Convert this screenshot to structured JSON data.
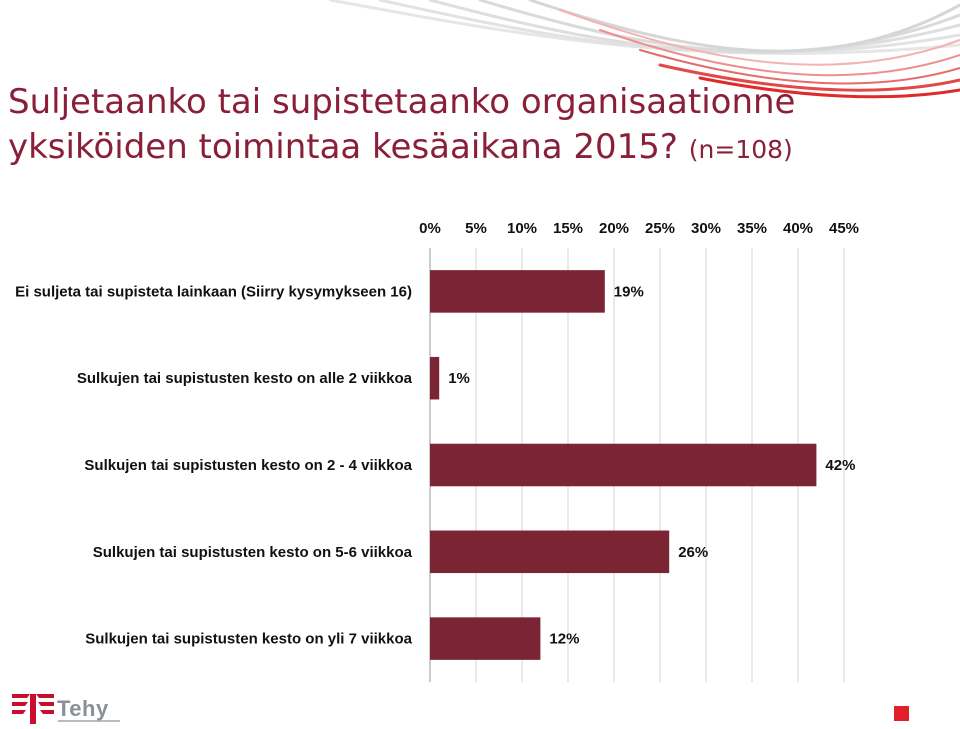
{
  "title": {
    "line1": "Suljetaanko tai supistetaanko organisaationne",
    "line2": "yksiköiden toimintaa kesäaikana 2015?",
    "sample": "(n=108)"
  },
  "logo": {
    "text": "Tehy"
  },
  "colors": {
    "title": "#8a1f3a",
    "bar": "#7b2433",
    "accent": "#e0202a"
  },
  "chart_data": {
    "type": "bar",
    "orientation": "horizontal",
    "title": "Suljetaanko tai supistetaanko organisaationne yksiköiden toimintaa kesäaikana 2015? (n=108)",
    "categories": [
      "Ei suljeta tai supisteta lainkaan (Siirry kysymykseen 16)",
      "Sulkujen tai supistusten kesto on alle 2 viikkoa",
      "Sulkujen tai supistusten kesto on 2 - 4 viikkoa",
      "Sulkujen tai supistusten kesto on 5-6 viikkoa",
      "Sulkujen tai supistusten kesto on yli 7 viikkoa"
    ],
    "values": [
      19,
      1,
      42,
      26,
      12
    ],
    "value_labels": [
      "19%",
      "1%",
      "42%",
      "26%",
      "12%"
    ],
    "xlim": [
      0,
      45
    ],
    "ticks": [
      0,
      5,
      10,
      15,
      20,
      25,
      30,
      35,
      40,
      45
    ],
    "tick_labels": [
      "0%",
      "5%",
      "10%",
      "15%",
      "20%",
      "25%",
      "30%",
      "35%",
      "40%",
      "45%"
    ],
    "x_axis_position": "top",
    "grid": true,
    "xlabel": "",
    "ylabel": ""
  }
}
